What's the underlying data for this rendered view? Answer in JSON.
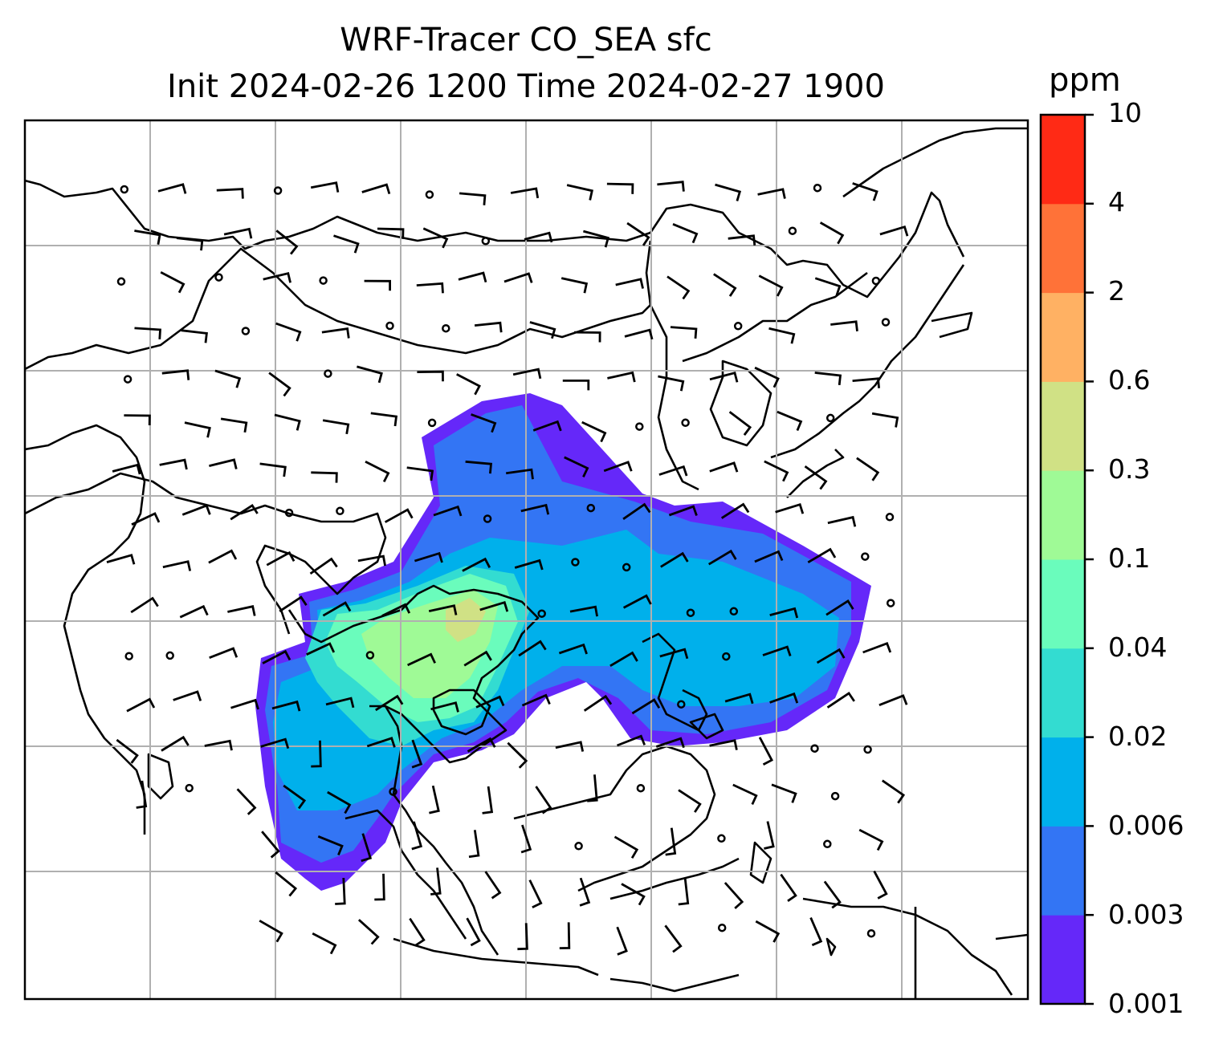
{
  "title": {
    "line1": "WRF-Tracer CO_SEA sfc",
    "line2": "Init 2024-02-26 1200 Time 2024-02-27 1900"
  },
  "colorbar": {
    "unit": "ppm",
    "ticks": [
      "0.001",
      "0.003",
      "0.006",
      "0.02",
      "0.04",
      "0.1",
      "0.3",
      "0.6",
      "2",
      "4",
      "10"
    ],
    "colors": [
      "#6528f9",
      "#3375f4",
      "#00b0eb",
      "#33dcd1",
      "#6afcbc",
      "#9ffa96",
      "#d0e185",
      "#ffb163",
      "#ff7238",
      "#ff2a15"
    ]
  },
  "map": {
    "background": "#ffffff",
    "gridlines": true,
    "wind_barbs": true
  }
}
